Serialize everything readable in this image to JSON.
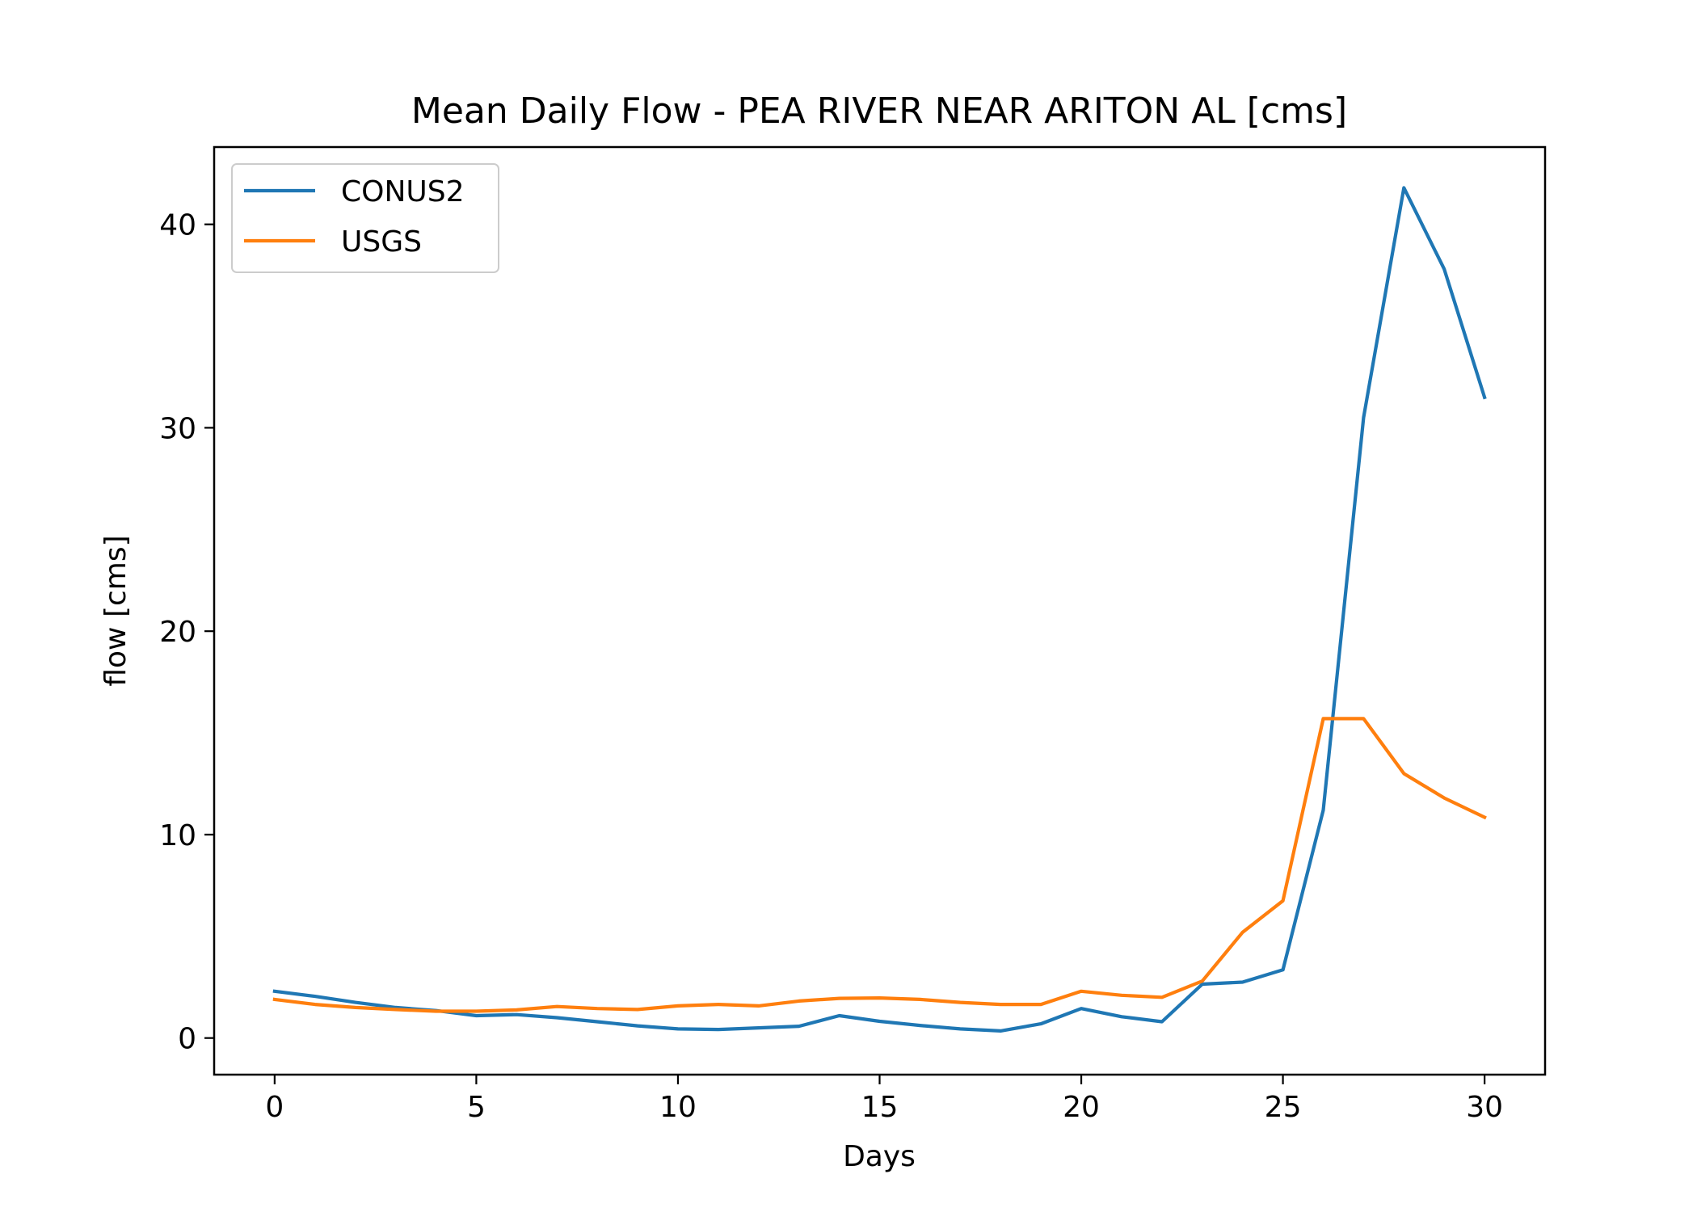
{
  "chart_data": {
    "type": "line",
    "title": "Mean Daily Flow - PEA RIVER NEAR ARITON AL [cms]",
    "xlabel": "Days",
    "ylabel": "flow [cms]",
    "xlim": [
      -1.5,
      31.5
    ],
    "ylim": [
      -1.8,
      43.8
    ],
    "xticks": [
      0,
      5,
      10,
      15,
      20,
      25,
      30
    ],
    "yticks": [
      0,
      10,
      20,
      30,
      40
    ],
    "grid": false,
    "legend_position": "upper-left",
    "x": [
      0,
      1,
      2,
      3,
      4,
      5,
      6,
      7,
      8,
      9,
      10,
      11,
      12,
      13,
      14,
      15,
      16,
      17,
      18,
      19,
      20,
      21,
      22,
      23,
      24,
      25,
      26,
      27,
      28,
      29,
      30
    ],
    "series": [
      {
        "name": "CONUS2",
        "color": "#1f77b4",
        "values": [
          2.3,
          2.05,
          1.75,
          1.5,
          1.35,
          1.1,
          1.15,
          1.0,
          0.8,
          0.6,
          0.45,
          0.42,
          0.5,
          0.58,
          1.1,
          0.82,
          0.62,
          0.45,
          0.35,
          0.7,
          1.45,
          1.05,
          0.8,
          2.65,
          2.75,
          3.35,
          11.2,
          30.5,
          41.8,
          37.8,
          31.5
        ]
      },
      {
        "name": "USGS",
        "color": "#ff7f0e",
        "values": [
          1.9,
          1.65,
          1.5,
          1.4,
          1.32,
          1.32,
          1.38,
          1.55,
          1.45,
          1.4,
          1.58,
          1.65,
          1.58,
          1.82,
          1.95,
          1.97,
          1.9,
          1.75,
          1.65,
          1.65,
          2.3,
          2.1,
          2.0,
          2.8,
          5.2,
          6.75,
          15.7,
          15.7,
          13.0,
          11.8,
          10.85
        ]
      }
    ]
  }
}
